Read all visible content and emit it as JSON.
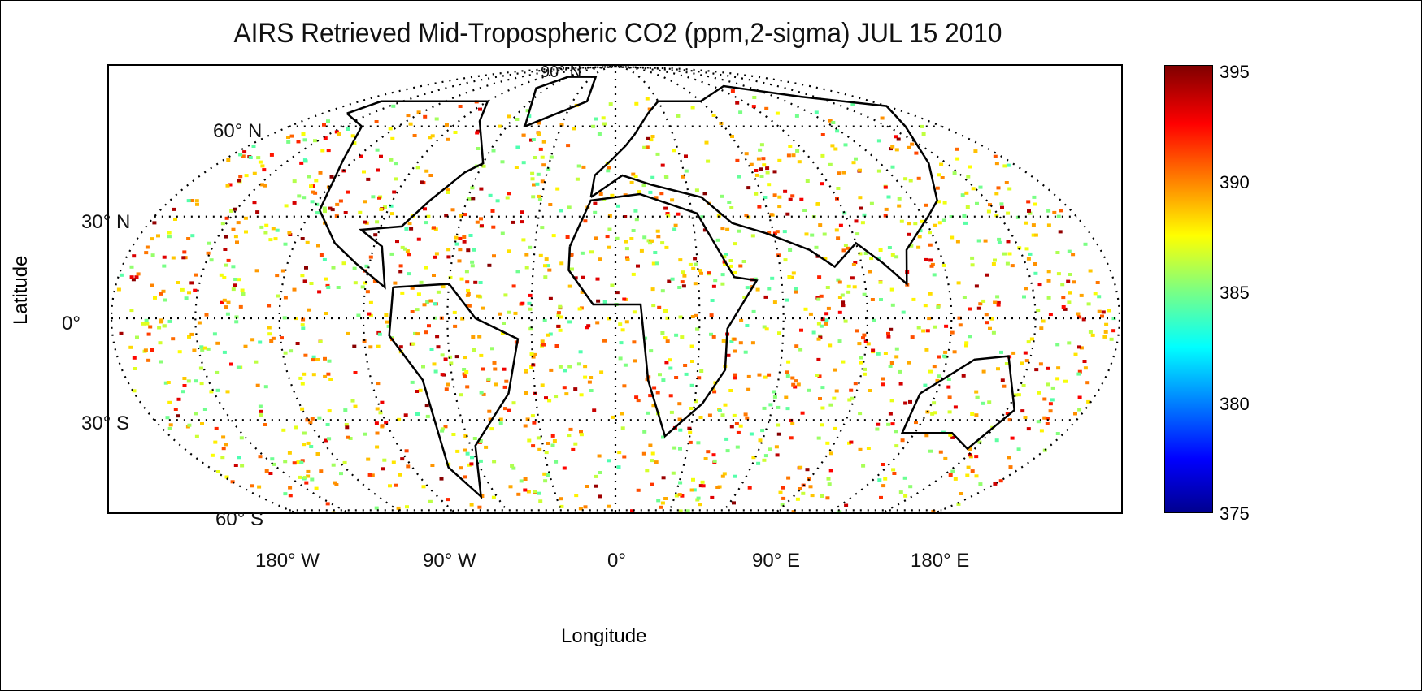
{
  "chart_data": {
    "type": "heatmap",
    "title": "AIRS Retrieved Mid-Tropospheric CO2 (ppm,2-sigma) JUL 15 2010",
    "xlabel": "Longitude",
    "ylabel": "Latitude",
    "projection": "Mollweide",
    "lat_ticks": [
      {
        "value": 90,
        "label": "90° N"
      },
      {
        "value": 60,
        "label": "60° N"
      },
      {
        "value": 30,
        "label": "30° N"
      },
      {
        "value": 0,
        "label": "0°"
      },
      {
        "value": -30,
        "label": "30° S"
      },
      {
        "value": -60,
        "label": "60° S"
      }
    ],
    "lon_ticks": [
      {
        "value": -180,
        "label": "180° W"
      },
      {
        "value": -90,
        "label": "90° W"
      },
      {
        "value": 0,
        "label": "0°"
      },
      {
        "value": 90,
        "label": "90° E"
      },
      {
        "value": 180,
        "label": "180° E"
      }
    ],
    "colorbar": {
      "min": 375,
      "max": 395,
      "ticks": [
        "395",
        "390",
        "385",
        "380",
        "375"
      ],
      "colormap": "jet"
    },
    "grid": true
  }
}
